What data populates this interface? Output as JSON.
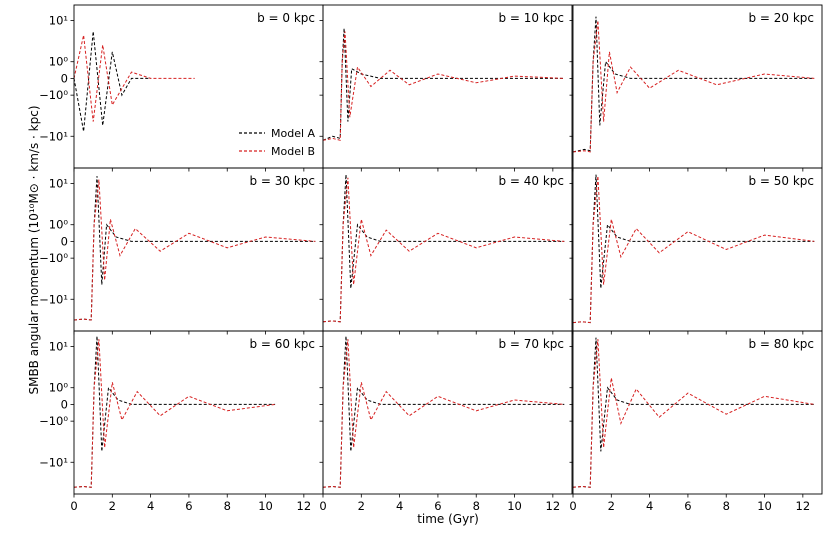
{
  "chart_data": {
    "type": "line",
    "figure": {
      "xlabel": "time (Gyr)",
      "ylabel": "SMBB angular momentum (10¹⁰M⊙ · km/s · kpc)",
      "xlim": [
        0,
        13
      ],
      "ylim": [
        -40,
        20
      ],
      "yscale": "symlog",
      "x_ticks": [
        0,
        2,
        4,
        6,
        8,
        10,
        12
      ],
      "x_tick_labels": [
        "0",
        "2",
        "4",
        "6",
        "8",
        "10",
        "12"
      ],
      "y_ticks": [
        10,
        1,
        0,
        -1,
        -10
      ],
      "y_tick_labels": [
        "10¹",
        "10⁰",
        "0",
        "−10⁰",
        "−10¹"
      ],
      "grid": false,
      "layout": "3x3 grid, shared axes"
    },
    "legend": {
      "entries": [
        {
          "label": "Model A",
          "color": "#000000",
          "style": "dashed"
        },
        {
          "label": "Model B",
          "color": "#d62020",
          "style": "dashed"
        }
      ],
      "location": "lower-right of first panel"
    },
    "series_colors": {
      "model_a": "#000000",
      "model_b": "#d62020"
    },
    "panels": [
      {
        "label": "b = 0 kpc",
        "series": [
          {
            "name": "Model A",
            "x": [
              0,
              0.5,
              1,
              1.5,
              2,
              2.5,
              3,
              4
            ],
            "y": [
              0,
              -8,
              6,
              -6,
              2,
              -1,
              0,
              0
            ]
          },
          {
            "name": "Model B",
            "x": [
              0,
              0.5,
              1,
              1.5,
              2,
              3,
              4,
              5,
              6.3
            ],
            "y": [
              0,
              5,
              -5,
              3,
              -2,
              0.3,
              0,
              0,
              0
            ]
          }
        ]
      },
      {
        "label": "b = 10 kpc",
        "series": [
          {
            "name": "Model A",
            "x": [
              0,
              0.5,
              0.9,
              1.0,
              1.1,
              1.3,
              1.5,
              2,
              3,
              4,
              12.6
            ],
            "y": [
              -12,
              -10,
              -11,
              1,
              7,
              -5,
              0.5,
              0.2,
              0,
              0,
              0
            ]
          },
          {
            "name": "Model B",
            "x": [
              0,
              0.5,
              0.9,
              1.0,
              1.15,
              1.4,
              1.8,
              2.5,
              3.5,
              4.5,
              6,
              8,
              10,
              12.6
            ],
            "y": [
              -12,
              -11,
              -12,
              1,
              6,
              -4,
              0.6,
              -0.4,
              0.4,
              -0.3,
              0.2,
              -0.2,
              0.1,
              0
            ]
          }
        ]
      },
      {
        "label": "b = 20 kpc",
        "series": [
          {
            "name": "Model A",
            "x": [
              0,
              0.6,
              0.9,
              1.05,
              1.2,
              1.4,
              1.7,
              2.2,
              3,
              4,
              12.6
            ],
            "y": [
              -20,
              -18,
              -19,
              1,
              12,
              -6,
              1,
              0.2,
              0,
              0,
              0
            ]
          },
          {
            "name": "Model B",
            "x": [
              0,
              0.6,
              0.9,
              1.05,
              1.3,
              1.6,
              1.9,
              2.3,
              3,
              4,
              5.5,
              7.5,
              10,
              12.6
            ],
            "y": [
              -20,
              -19,
              -20,
              1,
              10,
              -5,
              2,
              -0.8,
              0.6,
              -0.5,
              0.4,
              -0.3,
              0.2,
              0
            ]
          }
        ]
      },
      {
        "label": "b = 30 kpc",
        "series": [
          {
            "name": "Model A",
            "x": [
              0,
              0.5,
              0.9,
              1.05,
              1.2,
              1.45,
              1.7,
              2.2,
              3,
              4,
              12.6
            ],
            "y": [
              -25,
              -24,
              -25,
              1,
              14,
              -5,
              1,
              0.2,
              0,
              0,
              0
            ]
          },
          {
            "name": "Model B",
            "x": [
              0,
              0.5,
              0.9,
              1.05,
              1.3,
              1.6,
              1.9,
              2.4,
              3.2,
              4.5,
              6,
              8,
              10,
              12.6
            ],
            "y": [
              -25,
              -24,
              -25,
              1,
              12,
              -4,
              1.5,
              -0.8,
              0.7,
              -0.5,
              0.4,
              -0.3,
              0.2,
              0
            ]
          }
        ]
      },
      {
        "label": "b = 40 kpc",
        "series": [
          {
            "name": "Model A",
            "x": [
              0,
              0.5,
              0.9,
              1.05,
              1.2,
              1.45,
              1.8,
              2.3,
              3,
              4,
              12.6
            ],
            "y": [
              -27,
              -26,
              -27,
              1,
              15,
              -6,
              1,
              0.2,
              0,
              0,
              0
            ]
          },
          {
            "name": "Model B",
            "x": [
              0,
              0.5,
              0.9,
              1.05,
              1.3,
              1.6,
              2.0,
              2.5,
              3.3,
              4.5,
              6,
              8,
              10,
              12.6
            ],
            "y": [
              -27,
              -26,
              -27,
              1,
              13,
              -5,
              1.5,
              -0.8,
              0.6,
              -0.5,
              0.4,
              -0.3,
              0.2,
              0
            ]
          }
        ]
      },
      {
        "label": "b = 50 kpc",
        "series": [
          {
            "name": "Model A",
            "x": [
              0,
              0.5,
              0.9,
              1.05,
              1.2,
              1.45,
              1.8,
              2.3,
              3,
              4,
              12.6
            ],
            "y": [
              -28,
              -27,
              -28,
              1,
              15,
              -6,
              1,
              0.2,
              0,
              0,
              0
            ]
          },
          {
            "name": "Model B",
            "x": [
              0,
              0.5,
              0.9,
              1.05,
              1.3,
              1.6,
              2.0,
              2.5,
              3.3,
              4.5,
              6,
              8,
              10,
              12.6
            ],
            "y": [
              -28,
              -27,
              -28,
              1,
              14,
              -5,
              1.5,
              -0.9,
              0.7,
              -0.6,
              0.5,
              -0.4,
              0.3,
              0
            ]
          }
        ]
      },
      {
        "label": "b = 60 kpc",
        "series": [
          {
            "name": "Model A",
            "x": [
              0,
              0.5,
              0.9,
              1.05,
              1.2,
              1.45,
              1.8,
              2.3,
              3,
              4,
              10.5
            ],
            "y": [
              -30,
              -29,
              -30,
              1,
              16,
              -6,
              1,
              0.2,
              0,
              0,
              0
            ]
          },
          {
            "name": "Model B",
            "x": [
              0,
              0.5,
              0.9,
              1.05,
              1.3,
              1.6,
              2.0,
              2.5,
              3.3,
              4.5,
              6,
              8,
              10.5
            ],
            "y": [
              -30,
              -29,
              -30,
              1,
              14,
              -5,
              1.5,
              -0.9,
              0.7,
              -0.6,
              0.4,
              -0.3,
              0
            ]
          }
        ]
      },
      {
        "label": "b = 70 kpc",
        "series": [
          {
            "name": "Model A",
            "x": [
              0,
              0.5,
              0.9,
              1.05,
              1.2,
              1.45,
              1.8,
              2.3,
              3,
              4,
              12.6
            ],
            "y": [
              -30,
              -29,
              -30,
              1,
              16,
              -6,
              1,
              0.2,
              0,
              0,
              0
            ]
          },
          {
            "name": "Model B",
            "x": [
              0,
              0.5,
              0.9,
              1.05,
              1.3,
              1.6,
              2.0,
              2.5,
              3.3,
              4.5,
              6,
              8,
              10,
              12.6
            ],
            "y": [
              -30,
              -29,
              -30,
              1,
              14,
              -5,
              1.5,
              -0.9,
              0.7,
              -0.6,
              0.4,
              -0.3,
              0.2,
              0
            ]
          }
        ]
      },
      {
        "label": "b = 80 kpc",
        "series": [
          {
            "name": "Model A",
            "x": [
              0,
              0.5,
              0.9,
              1.05,
              1.2,
              1.45,
              1.8,
              2.3,
              3,
              4,
              12.6
            ],
            "y": [
              -30,
              -29,
              -30,
              1,
              15,
              -6,
              1,
              0.2,
              0,
              0,
              0
            ]
          },
          {
            "name": "Model B",
            "x": [
              0,
              0.5,
              0.9,
              1.05,
              1.3,
              1.6,
              2.0,
              2.5,
              3.3,
              4.5,
              6,
              8,
              10,
              12.6
            ],
            "y": [
              -30,
              -29,
              -30,
              1,
              14,
              -5,
              2,
              -1.2,
              0.9,
              -0.7,
              0.6,
              -0.5,
              0.4,
              0
            ]
          }
        ]
      }
    ]
  }
}
